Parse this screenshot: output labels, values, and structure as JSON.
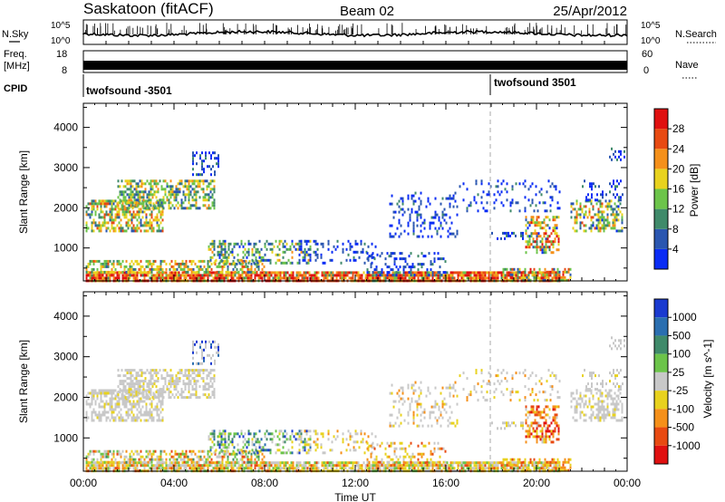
{
  "header": {
    "station": "Saskatoon (fitACF)",
    "beam": "Beam 02",
    "date": "25/Apr/2012"
  },
  "noise_panel": {
    "left_label": "N.Sky",
    "right_label": "N.Search",
    "tick_top": "10^5",
    "tick_bottom": "10^0"
  },
  "freq_panel": {
    "left_label_1": "Freq.",
    "left_label_2": "[MHz]",
    "left_top": "18",
    "left_bottom": "8",
    "right_top": "60",
    "right_bottom": "0",
    "right_label": "Nave"
  },
  "cpid": {
    "label": "CPID",
    "segments": [
      "twofsound -3501",
      "twofsound 3501"
    ]
  },
  "chart_data": [
    {
      "type": "heatmap",
      "name": "power",
      "ylabel": "Slant Range [km]",
      "xlabel": "Time UT",
      "y_ticks": [
        "1000",
        "2000",
        "3000",
        "4000"
      ],
      "ylim": [
        180,
        4600
      ],
      "xlim": [
        0,
        24
      ],
      "x_ticks": [
        "00:00",
        "04:00",
        "08:00",
        "12:00",
        "16:00",
        "20:00",
        "00:00"
      ],
      "colorbar": {
        "label": "Power [dB]",
        "ticks": [
          "4",
          "8",
          "12",
          "16",
          "20",
          "24",
          "28"
        ],
        "colors": [
          "#0a2cf5",
          "#2a56b0",
          "#3f8a6a",
          "#6cc44a",
          "#e8d21e",
          "#f5901a",
          "#e84a12",
          "#e01010"
        ]
      }
    },
    {
      "type": "heatmap",
      "name": "velocity",
      "ylabel": "Slant Range [km]",
      "xlabel": "Time UT",
      "y_ticks": [
        "1000",
        "2000",
        "3000",
        "4000"
      ],
      "ylim": [
        180,
        4600
      ],
      "xlim": [
        0,
        24
      ],
      "x_ticks": [
        "00:00",
        "04:00",
        "08:00",
        "12:00",
        "16:00",
        "20:00",
        "00:00"
      ],
      "colorbar": {
        "label": "Velocity [m s^-1]",
        "ticks": [
          "1000",
          "500",
          "100",
          "25",
          "-25",
          "-100",
          "-500",
          "-1000"
        ],
        "colors": [
          "#1a3ad0",
          "#2a6eb0",
          "#3f8a6a",
          "#6cc44a",
          "#c8c8c8",
          "#e8d21e",
          "#f5901a",
          "#e84a12",
          "#e01010"
        ]
      }
    }
  ]
}
